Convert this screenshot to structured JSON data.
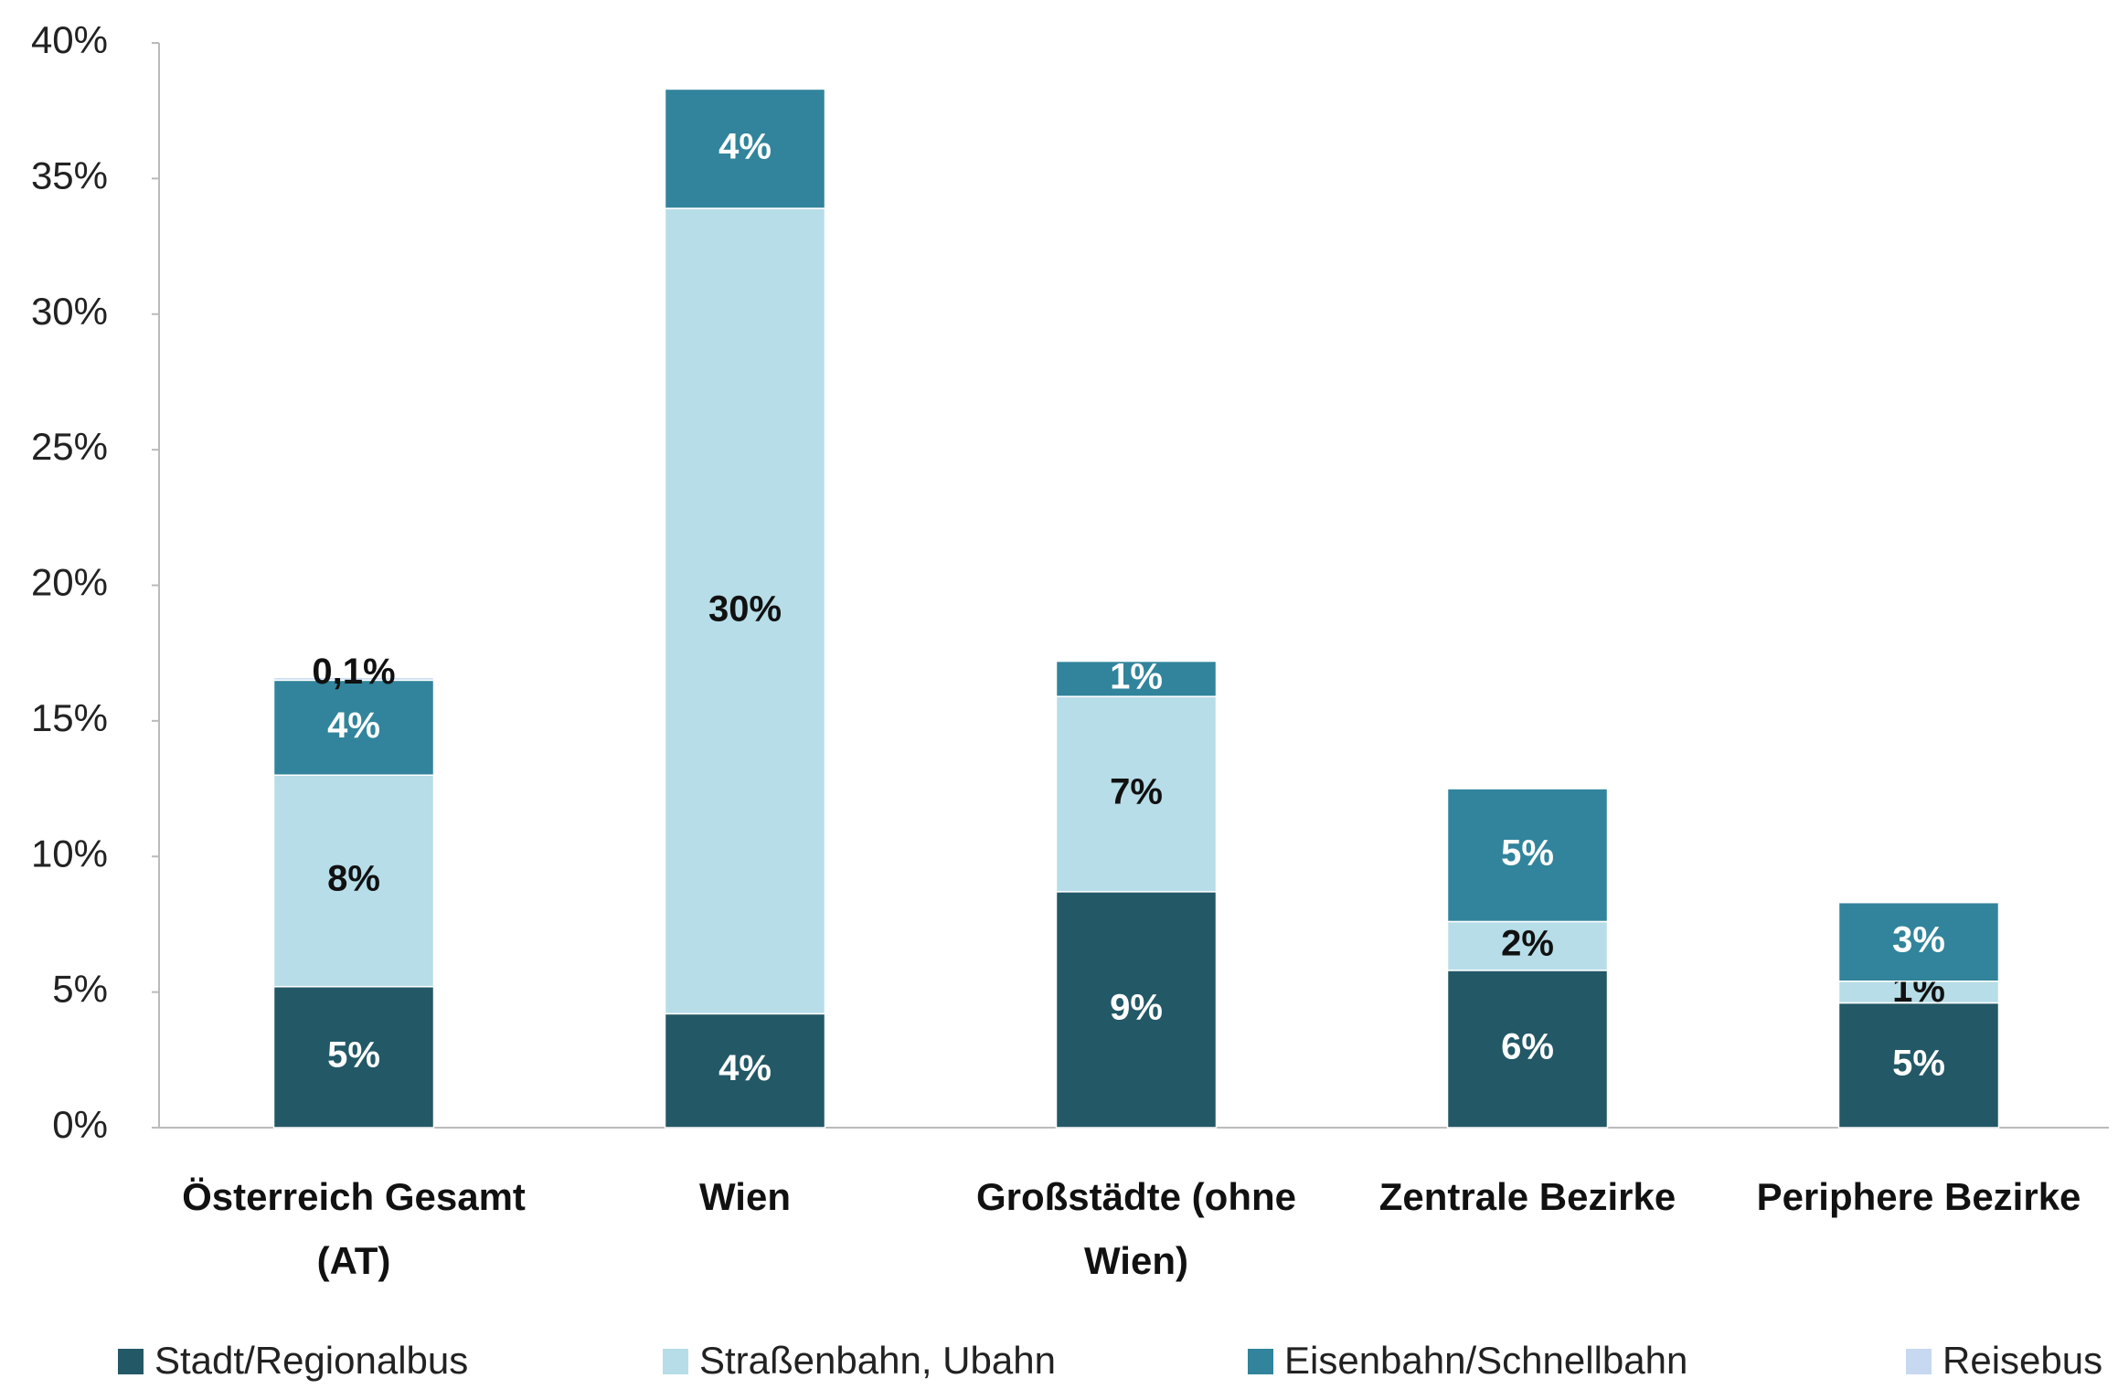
{
  "chart_data": {
    "type": "stacked_bar",
    "categories": [
      "Österreich Gesamt (AT)",
      "Wien",
      "Großstädte (ohne Wien)",
      "Zentrale Bezirke",
      "Periphere Bezirke"
    ],
    "series": [
      {
        "name": "Stadt/Regionalbus",
        "color": "#235866",
        "values": [
          5.2,
          4.2,
          8.7,
          5.8,
          4.6
        ],
        "value_labels": [
          "5%",
          "4%",
          "9%",
          "6%",
          "5%"
        ]
      },
      {
        "name": "Straßenbahn, Ubahn",
        "color": "#b7dde8",
        "values": [
          7.8,
          29.7,
          7.2,
          1.8,
          0.8
        ],
        "value_labels": [
          "8%",
          "30%",
          "7%",
          "2%",
          "1%"
        ]
      },
      {
        "name": "Eisenbahn/Schnellbahn",
        "color": "#31849b",
        "values": [
          3.5,
          4.4,
          1.3,
          4.9,
          2.9
        ],
        "value_labels": [
          "4%",
          "4%",
          "1%",
          "5%",
          "3%"
        ]
      },
      {
        "name": "Reisebus",
        "color": "#c6d9f0",
        "values": [
          0.1,
          null,
          null,
          null,
          null
        ],
        "value_labels": [
          "0,1%",
          null,
          null,
          null,
          null
        ]
      }
    ],
    "ylim": [
      0,
      40
    ],
    "yticks": [
      {
        "value": 0,
        "label": "0%"
      },
      {
        "value": 5,
        "label": "5%"
      },
      {
        "value": 10,
        "label": "10%"
      },
      {
        "value": 15,
        "label": "15%"
      },
      {
        "value": 20,
        "label": "20%"
      },
      {
        "value": 25,
        "label": "25%"
      },
      {
        "value": 30,
        "label": "30%"
      },
      {
        "value": 35,
        "label": "35%"
      },
      {
        "value": 40,
        "label": "40%"
      }
    ],
    "grid": false,
    "legend": "bottom"
  }
}
